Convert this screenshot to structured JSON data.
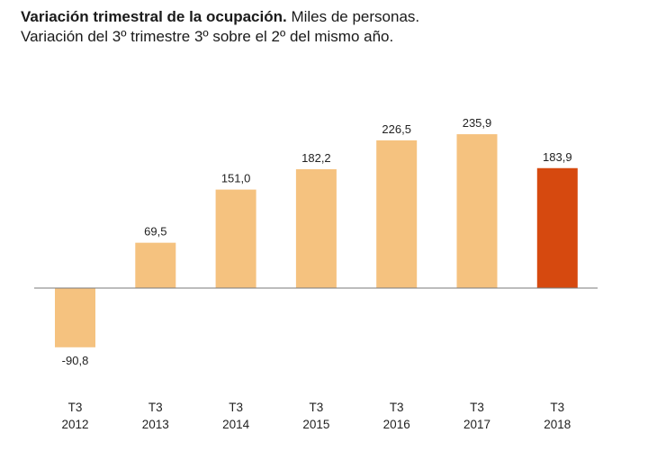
{
  "chart_data": {
    "type": "bar",
    "title": "Variación trimestral de la ocupación.",
    "title_suffix": "Miles de personas.",
    "subtitle": "Variación del 3º trimestre 3º sobre el 2º del mismo año.",
    "categories": [
      {
        "line1": "T3",
        "line2": "2012"
      },
      {
        "line1": "T3",
        "line2": "2013"
      },
      {
        "line1": "T3",
        "line2": "2014"
      },
      {
        "line1": "T3",
        "line2": "2015"
      },
      {
        "line1": "T3",
        "line2": "2016"
      },
      {
        "line1": "T3",
        "line2": "2017"
      },
      {
        "line1": "T3",
        "line2": "2018"
      }
    ],
    "values": [
      -90.8,
      69.5,
      151.0,
      182.2,
      226.5,
      235.9,
      183.9
    ],
    "value_labels": [
      "-90,8",
      "69,5",
      "151,0",
      "182,2",
      "226,5",
      "235,9",
      "183,9"
    ],
    "highlight_index": 6,
    "colors": {
      "bar": "#f5c27f",
      "highlight": "#d6490f",
      "axis": "#7a7a7a"
    },
    "xlabel": "",
    "ylabel": "",
    "ylim": [
      -100,
      245
    ],
    "grid": false,
    "legend": "none"
  }
}
